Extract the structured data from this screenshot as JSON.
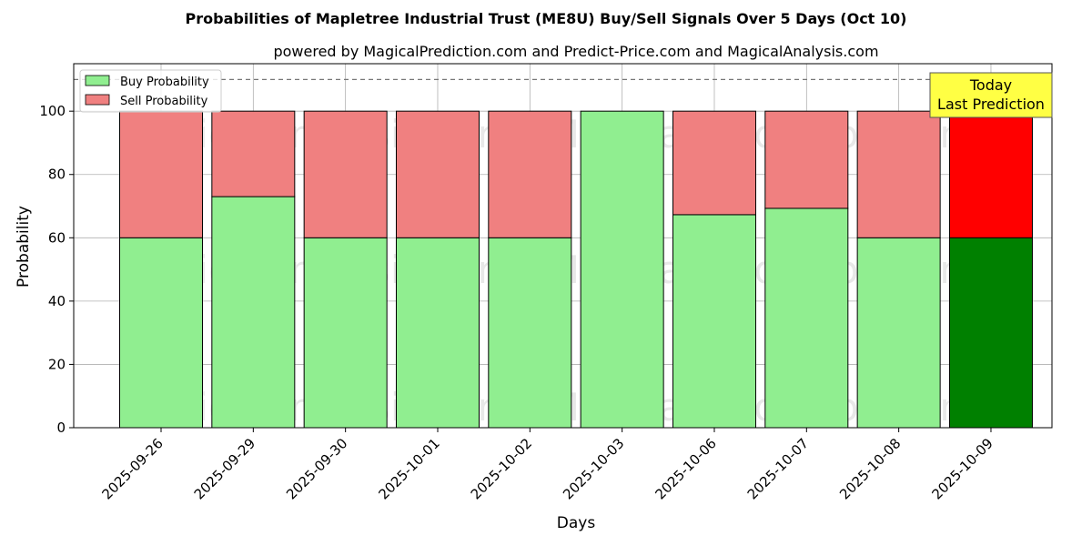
{
  "chart_data": {
    "type": "bar",
    "stacked": true,
    "title": "Probabilities of Mapletree Industrial Trust (ME8U) Buy/Sell Signals Over 5 Days (Oct 10)",
    "subtitle": "powered by MagicalPrediction.com and Predict-Price.com and MagicalAnalysis.com",
    "xlabel": "Days",
    "ylabel": "Probability",
    "ylim": [
      0,
      115
    ],
    "yticks": [
      0,
      20,
      40,
      60,
      80,
      100
    ],
    "reference_line": 110,
    "grid": true,
    "legend_position": "top-left",
    "categories": [
      "2025-09-26",
      "2025-09-29",
      "2025-09-30",
      "2025-10-01",
      "2025-10-02",
      "2025-10-03",
      "2025-10-06",
      "2025-10-07",
      "2025-10-08",
      "2025-10-09"
    ],
    "series": [
      {
        "name": "Buy Probability",
        "color": "#90ee90",
        "highlight_color": "#008000",
        "values": [
          60,
          73,
          60,
          60,
          60,
          100,
          67.3,
          69.3,
          60,
          60
        ]
      },
      {
        "name": "Sell Probability",
        "color": "#f08080",
        "highlight_color": "#ff0000",
        "values": [
          40,
          27,
          40,
          40,
          40,
          0,
          32.7,
          30.7,
          40,
          40
        ]
      }
    ],
    "highlight_index": 9,
    "annotation": {
      "line1": "Today",
      "line2": "Last Prediction",
      "color": "#ffff44"
    },
    "watermarks": [
      "MagicalAnalysis.com",
      "MagicalPrediction.com"
    ]
  }
}
